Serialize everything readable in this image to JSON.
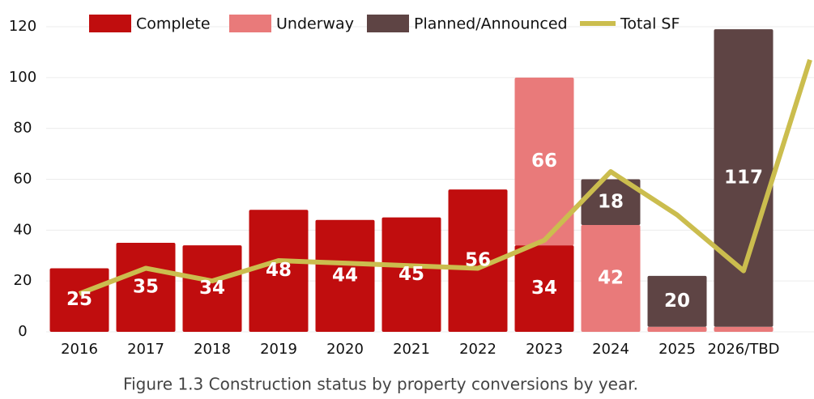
{
  "chart_data": {
    "type": "stacked_bar_line",
    "caption": "Figure 1.3 Construction status by property conversions by year.",
    "categories": [
      "2016",
      "2017",
      "2018",
      "2019",
      "2020",
      "2021",
      "2022",
      "2023",
      "2024",
      "2025",
      "2026/TBD",
      null
    ],
    "series": [
      {
        "name": "Complete",
        "color": "#c00d0e",
        "kind": "bar",
        "values": [
          25,
          35,
          34,
          48,
          44,
          45,
          56,
          34,
          null,
          null,
          null,
          null
        ],
        "value_labels": [
          "25",
          "35",
          "34",
          "48",
          "44",
          "45",
          "56",
          "34",
          null,
          null,
          null,
          null
        ]
      },
      {
        "name": "Underway",
        "color": "#e97a7a",
        "kind": "bar",
        "values": [
          null,
          null,
          null,
          null,
          null,
          null,
          null,
          66,
          42,
          2,
          2,
          null
        ],
        "value_labels": [
          null,
          null,
          null,
          null,
          null,
          null,
          null,
          "66",
          "42",
          null,
          null,
          null
        ]
      },
      {
        "name": "Planned/Announced",
        "color": "#5e4444",
        "kind": "bar",
        "values": [
          null,
          null,
          null,
          null,
          null,
          null,
          null,
          null,
          18,
          20,
          117,
          null
        ],
        "value_labels": [
          null,
          null,
          null,
          null,
          null,
          null,
          null,
          null,
          "18",
          "20",
          "117",
          null
        ]
      },
      {
        "name": "Total SF",
        "color": "#cbbd4e",
        "kind": "line",
        "values": [
          15,
          25,
          20,
          28,
          27,
          26,
          25,
          36,
          63,
          46,
          24,
          107
        ]
      }
    ],
    "ylim": [
      0,
      120
    ],
    "yticks": [
      0,
      20,
      40,
      60,
      80,
      100,
      120
    ],
    "grid": true
  }
}
